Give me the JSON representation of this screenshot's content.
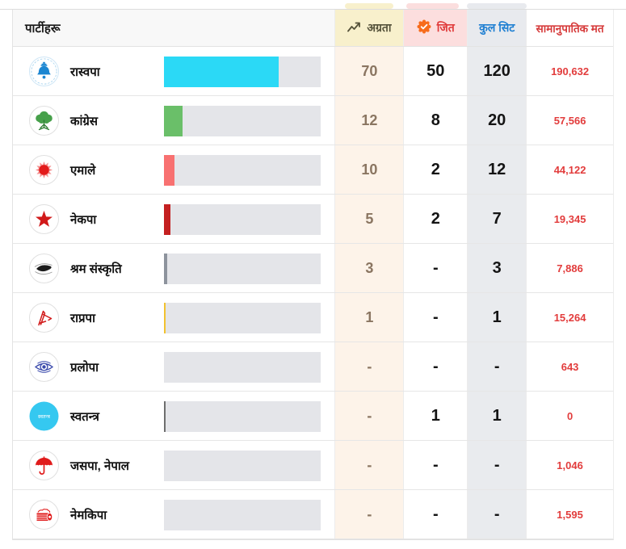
{
  "header": {
    "party_label": "पार्टीहरू",
    "lead_label": "अग्रता",
    "won_label": "जित",
    "total_label": "कुल सिट",
    "proportional_label": "सामानुपातिक मत"
  },
  "icons": {
    "lead_header": "trending-up-icon",
    "won_header": "verified-badge-icon"
  },
  "colors": {
    "lead_header_bg": "#f8f0cc",
    "lead_cell_bg": "#fdf3e9",
    "lead_text": "#8a7561",
    "won_header_bg": "#fcdede",
    "red_text": "#e23c3c",
    "total_col_bg": "#e9ebee",
    "total_header_text": "#1e7fd2",
    "bar_track": "#e4e5e9"
  },
  "chart_data": {
    "type": "table",
    "columns": [
      "पार्टीहरू",
      "अग्रता",
      "जित",
      "कुल सिट",
      "सामानुपातिक मत"
    ],
    "rows": [
      {
        "party": "रास्वपा",
        "symbol": "bell",
        "lead": "70",
        "won": "50",
        "total": "120",
        "proportional": "190,632",
        "bar_percent": 73,
        "bar_color": "#2bd9f6"
      },
      {
        "party": "कांग्रेस",
        "symbol": "tree",
        "lead": "12",
        "won": "8",
        "total": "20",
        "proportional": "57,566",
        "bar_percent": 12,
        "bar_color": "#6abf69"
      },
      {
        "party": "एमाले",
        "symbol": "sun",
        "lead": "10",
        "won": "2",
        "total": "12",
        "proportional": "44,122",
        "bar_percent": 6.7,
        "bar_color": "#f87171"
      },
      {
        "party": "नेकपा",
        "symbol": "star",
        "lead": "5",
        "won": "2",
        "total": "7",
        "proportional": "19,345",
        "bar_percent": 4.1,
        "bar_color": "#c42021"
      },
      {
        "party": "श्रम संस्कृति",
        "symbol": "animal",
        "lead": "3",
        "won": "-",
        "total": "3",
        "proportional": "7,886",
        "bar_percent": 2,
        "bar_color": "#8d939d"
      },
      {
        "party": "राप्रपा",
        "symbol": "plough",
        "lead": "1",
        "won": "-",
        "total": "1",
        "proportional": "15,264",
        "bar_percent": 1,
        "bar_color": "#f2c230"
      },
      {
        "party": "प्रलोपा",
        "symbol": "eye",
        "lead": "-",
        "won": "-",
        "total": "-",
        "proportional": "643",
        "bar_percent": 0,
        "bar_color": "transparent"
      },
      {
        "party": "स्वतन्त्र",
        "symbol": "independent-badge",
        "lead": "-",
        "won": "1",
        "total": "1",
        "proportional": "0",
        "bar_percent": 1,
        "bar_color": "#6e6e6e"
      },
      {
        "party": "जसपा, नेपाल",
        "symbol": "umbrella",
        "lead": "-",
        "won": "-",
        "total": "-",
        "proportional": "1,046",
        "bar_percent": 0,
        "bar_color": "transparent"
      },
      {
        "party": "नेमकिपा",
        "symbol": "drum",
        "lead": "-",
        "won": "-",
        "total": "-",
        "proportional": "1,595",
        "bar_percent": 0,
        "bar_color": "transparent"
      }
    ]
  }
}
